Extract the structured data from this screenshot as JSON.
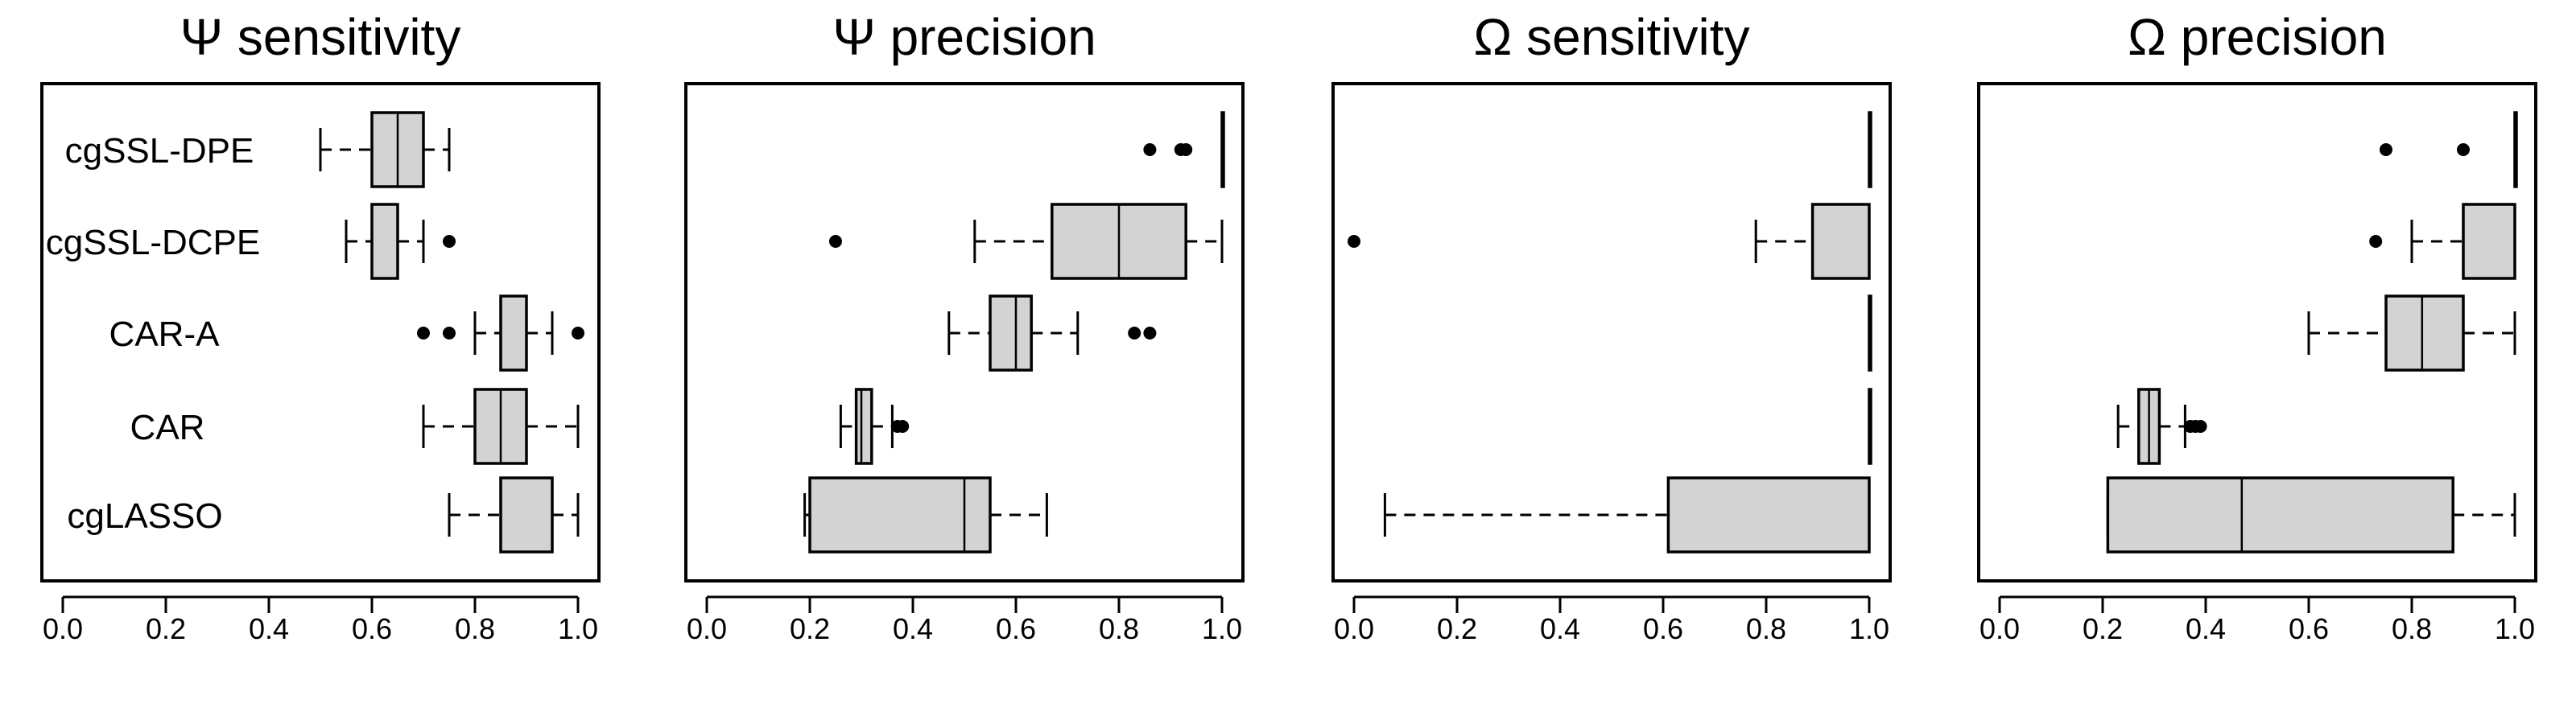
{
  "chart_data": [
    {
      "type": "boxplot",
      "orientation": "horizontal",
      "title": "Ψ sensitivity",
      "categories": [
        "cgSSL-DPE",
        "cgSSL-DCPE",
        "CAR-A",
        "CAR",
        "cgLASSO"
      ],
      "xlim": [
        0,
        1
      ],
      "ticks": [
        "0.0",
        "0.2",
        "0.4",
        "0.6",
        "0.8",
        "1.0"
      ],
      "boxes": [
        {
          "name": "cgSSL-DPE",
          "whisker_low": 0.5,
          "q1": 0.6,
          "median": 0.65,
          "q3": 0.7,
          "whisker_high": 0.75,
          "outliers": []
        },
        {
          "name": "cgSSL-DCPE",
          "whisker_low": 0.55,
          "q1": 0.6,
          "median": 0.65,
          "q3": 0.65,
          "whisker_high": 0.7,
          "outliers": [
            0.75
          ]
        },
        {
          "name": "CAR-A",
          "whisker_low": 0.8,
          "q1": 0.85,
          "median": 0.9,
          "q3": 0.9,
          "whisker_high": 0.95,
          "outliers": [
            0.7,
            0.75,
            1.0
          ]
        },
        {
          "name": "CAR",
          "whisker_low": 0.7,
          "q1": 0.8,
          "median": 0.85,
          "q3": 0.9,
          "whisker_high": 1.0,
          "outliers": []
        },
        {
          "name": "cgLASSO",
          "whisker_low": 0.75,
          "q1": 0.85,
          "median": 0.95,
          "q3": 0.95,
          "whisker_high": 1.0,
          "outliers": []
        }
      ]
    },
    {
      "type": "boxplot",
      "orientation": "horizontal",
      "title": "Ψ precision",
      "categories": [
        "cgSSL-DPE",
        "cgSSL-DCPE",
        "CAR-A",
        "CAR",
        "cgLASSO"
      ],
      "xlim": [
        0,
        1
      ],
      "ticks": [
        "0.0",
        "0.2",
        "0.4",
        "0.6",
        "0.8",
        "1.0"
      ],
      "boxes": [
        {
          "name": "cgSSL-DPE",
          "whisker_low": 1.0,
          "q1": 1.0,
          "median": 1.0,
          "q3": 1.0,
          "whisker_high": 1.0,
          "outliers": [
            0.86,
            0.92,
            0.93
          ]
        },
        {
          "name": "cgSSL-DCPE",
          "whisker_low": 0.52,
          "q1": 0.67,
          "median": 0.8,
          "q3": 0.93,
          "whisker_high": 1.0,
          "outliers": [
            0.25
          ]
        },
        {
          "name": "CAR-A",
          "whisker_low": 0.47,
          "q1": 0.55,
          "median": 0.6,
          "q3": 0.63,
          "whisker_high": 0.72,
          "outliers": [
            0.83,
            0.86
          ]
        },
        {
          "name": "CAR",
          "whisker_low": 0.26,
          "q1": 0.29,
          "median": 0.3,
          "q3": 0.32,
          "whisker_high": 0.36,
          "outliers": [
            0.37,
            0.38
          ]
        },
        {
          "name": "cgLASSO",
          "whisker_low": 0.19,
          "q1": 0.2,
          "median": 0.5,
          "q3": 0.55,
          "whisker_high": 0.66,
          "outliers": []
        }
      ]
    },
    {
      "type": "boxplot",
      "orientation": "horizontal",
      "title": "Ω sensitivity",
      "categories": [
        "cgSSL-DPE",
        "cgSSL-DCPE",
        "CAR-A",
        "CAR",
        "cgLASSO"
      ],
      "xlim": [
        0,
        1
      ],
      "ticks": [
        "0.0",
        "0.2",
        "0.4",
        "0.6",
        "0.8",
        "1.0"
      ],
      "boxes": [
        {
          "name": "cgSSL-DPE",
          "whisker_low": 1.0,
          "q1": 1.0,
          "median": 1.0,
          "q3": 1.0,
          "whisker_high": 1.0,
          "outliers": []
        },
        {
          "name": "cgSSL-DCPE",
          "whisker_low": 0.78,
          "q1": 0.89,
          "median": 1.0,
          "q3": 1.0,
          "whisker_high": 1.0,
          "outliers": [
            0.0
          ]
        },
        {
          "name": "CAR-A",
          "whisker_low": 1.0,
          "q1": 1.0,
          "median": 1.0,
          "q3": 1.0,
          "whisker_high": 1.0,
          "outliers": []
        },
        {
          "name": "CAR",
          "whisker_low": 1.0,
          "q1": 1.0,
          "median": 1.0,
          "q3": 1.0,
          "whisker_high": 1.0,
          "outliers": []
        },
        {
          "name": "cgLASSO",
          "whisker_low": 0.06,
          "q1": 0.61,
          "median": 1.0,
          "q3": 1.0,
          "whisker_high": 1.0,
          "outliers": []
        }
      ]
    },
    {
      "type": "boxplot",
      "orientation": "horizontal",
      "title": "Ω precision",
      "categories": [
        "cgSSL-DPE",
        "cgSSL-DCPE",
        "CAR-A",
        "CAR",
        "cgLASSO"
      ],
      "xlim": [
        0,
        1
      ],
      "ticks": [
        "0.0",
        "0.2",
        "0.4",
        "0.6",
        "0.8",
        "1.0"
      ],
      "boxes": [
        {
          "name": "cgSSL-DPE",
          "whisker_low": 1.0,
          "q1": 1.0,
          "median": 1.0,
          "q3": 1.0,
          "whisker_high": 1.0,
          "outliers": [
            0.75,
            0.9
          ]
        },
        {
          "name": "cgSSL-DCPE",
          "whisker_low": 0.8,
          "q1": 0.9,
          "median": 1.0,
          "q3": 1.0,
          "whisker_high": 1.0,
          "outliers": [
            0.73
          ]
        },
        {
          "name": "CAR-A",
          "whisker_low": 0.6,
          "q1": 0.75,
          "median": 0.82,
          "q3": 0.9,
          "whisker_high": 1.0,
          "outliers": []
        },
        {
          "name": "CAR",
          "whisker_low": 0.23,
          "q1": 0.27,
          "median": 0.29,
          "q3": 0.31,
          "whisker_high": 0.36,
          "outliers": [
            0.37,
            0.38,
            0.39
          ]
        },
        {
          "name": "cgLASSO",
          "whisker_low": 0.21,
          "q1": 0.21,
          "median": 0.47,
          "q3": 0.88,
          "whisker_high": 1.0,
          "outliers": []
        }
      ]
    }
  ]
}
